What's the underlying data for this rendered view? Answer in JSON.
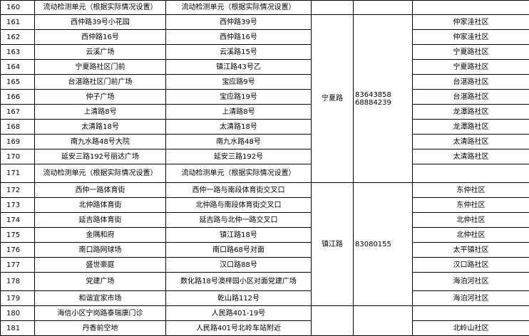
{
  "blocks": [
    {
      "rows": [
        [
          "160",
          "流动检测单元（根据实际情况设置）",
          "流动检测单元（根据实际情况设置）",
          null
        ]
      ]
    },
    {
      "street": "宁夏路",
      "phones": [
        "83643858",
        "68884239"
      ],
      "rows": [
        [
          "161",
          "西仲路39号小花园",
          "西仲路39号",
          "仲家洼社区"
        ],
        [
          "162",
          "西仲路16号",
          "西仲路16号",
          "仲家洼社区"
        ],
        [
          "163",
          "云溪广场",
          "云溪路15号",
          "宁夏路社区"
        ],
        [
          "164",
          "宁夏路社区门前",
          "镇江路43号乙",
          "宁夏路社区"
        ],
        [
          "165",
          "台湛路社区门前广场",
          "宝应路9号",
          "台湛路社区"
        ],
        [
          "166",
          "仲子广场",
          "宝应路19号",
          "台湛路社区"
        ],
        [
          "167",
          "上清路8号",
          "上清路8号",
          "龙潭路社区"
        ],
        [
          "168",
          "太清路18号",
          "太清路18号",
          "龙潭路社区"
        ],
        [
          "169",
          "南九水路48号大院",
          "南九水路48号",
          "太清路社区"
        ],
        [
          "170",
          "延安三路192号丽达广场",
          "延安三路192号",
          "太清路社区"
        ],
        [
          "171",
          "流动检测单元（根据实际情况设置）",
          "流动检测单元（根据实际情况设置）",
          null
        ]
      ]
    },
    {
      "street": "镇江路",
      "phones": [
        "83080155"
      ],
      "rows": [
        [
          "172",
          "西仲一路体育街",
          "西仲一路与南段体育街交叉口",
          "东仲社区"
        ],
        [
          "173",
          "北仲路体育街",
          "北仲路与南段体育街交叉口",
          "东仲社区"
        ],
        [
          "174",
          "延吉路体育街",
          "延吉路与北仲一路交叉口",
          "北仲社区"
        ],
        [
          "175",
          "金隅和府",
          "镇江路18号",
          "北仲社区"
        ],
        [
          "176",
          "南口路网球场",
          "南口路68号对面",
          "太平镇社区"
        ],
        [
          "177",
          "盛世豪庭",
          "汉口路88号",
          "汉口路社区"
        ],
        [
          "178",
          "党建广场",
          "数化路18号澳梓园小区对面党建广场",
          "海泊河社区"
        ],
        [
          "179",
          "和谐宜家市场",
          "乾山路112号",
          "海泊河社区"
        ]
      ]
    },
    {
      "rows": [
        [
          "180",
          "海信小区宁岗路泰瑞康门诊",
          "人民路401-19号",
          null
        ],
        [
          "181",
          "丹香前空地",
          "人民路401号北岭车站附近",
          "北岭山社区"
        ]
      ]
    }
  ]
}
